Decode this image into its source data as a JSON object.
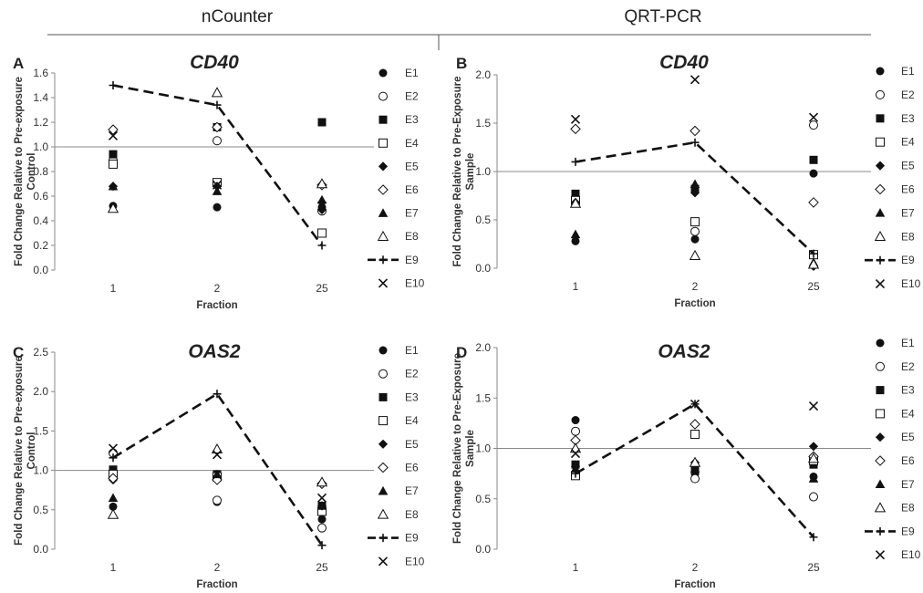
{
  "header": {
    "left_title": "nCounter",
    "right_title": "QRT-PCR"
  },
  "legend_labels": [
    "E1",
    "E2",
    "E3",
    "E4",
    "E5",
    "E6",
    "E7",
    "E8",
    "E9",
    "E10"
  ],
  "chart_data": [
    {
      "panel": "A",
      "type": "scatter",
      "title": "CD40",
      "xlabel": "Fraction",
      "ylabel": [
        "Fold Change Relative to Pre-exposure",
        "Control"
      ],
      "categories": [
        "1",
        "2",
        "25"
      ],
      "ylim": [
        0,
        1.6
      ],
      "yticks": [
        "0.0",
        "0.2",
        "0.4",
        "0.6",
        "0.8",
        "1.0",
        "1.2",
        "1.4",
        "1.6"
      ],
      "reference_line": 1.0,
      "series": [
        {
          "name": "E1",
          "values": [
            0.52,
            0.51,
            0.51
          ]
        },
        {
          "name": "E2",
          "values": [
            0.89,
            1.05,
            0.48
          ]
        },
        {
          "name": "E3",
          "values": [
            0.94,
            1.16,
            1.2
          ]
        },
        {
          "name": "E4",
          "values": [
            0.86,
            0.71,
            0.3
          ]
        },
        {
          "name": "E5",
          "values": [
            0.68,
            0.68,
            0.49
          ]
        },
        {
          "name": "E6",
          "values": [
            1.14,
            1.16,
            0.69
          ]
        },
        {
          "name": "E7",
          "values": [
            0.68,
            0.64,
            0.57
          ]
        },
        {
          "name": "E8",
          "values": [
            0.5,
            1.44,
            0.7
          ]
        },
        {
          "name": "E9",
          "values": [
            1.5,
            1.34,
            0.2
          ]
        },
        {
          "name": "E10",
          "values": [
            1.09,
            0.69,
            0.52
          ]
        }
      ]
    },
    {
      "panel": "B",
      "type": "scatter",
      "title": "CD40",
      "xlabel": "Fraction",
      "ylabel": [
        "Fold Change Relative to Pre-Exposure",
        "Sample"
      ],
      "categories": [
        "1",
        "2",
        "25"
      ],
      "ylim": [
        0,
        2.0
      ],
      "yticks": [
        "0.0",
        "0.5",
        "1.0",
        "1.5",
        "2.0"
      ],
      "reference_line": 1.0,
      "series": [
        {
          "name": "E1",
          "values": [
            0.28,
            0.3,
            0.98
          ]
        },
        {
          "name": "E2",
          "values": [
            0.7,
            0.38,
            1.48
          ]
        },
        {
          "name": "E3",
          "values": [
            0.77,
            0.82,
            1.12
          ]
        },
        {
          "name": "E4",
          "values": [
            0.7,
            0.48,
            0.14
          ]
        },
        {
          "name": "E5",
          "values": [
            0.68,
            0.78,
            0.02
          ]
        },
        {
          "name": "E6",
          "values": [
            1.44,
            1.42,
            0.68
          ]
        },
        {
          "name": "E7",
          "values": [
            0.35,
            0.87,
            0.06
          ]
        },
        {
          "name": "E8",
          "values": [
            0.67,
            0.13,
            0.04
          ]
        },
        {
          "name": "E9",
          "values": [
            1.1,
            1.3,
            0.15
          ]
        },
        {
          "name": "E10",
          "values": [
            1.54,
            1.95,
            1.56
          ]
        }
      ]
    },
    {
      "panel": "C",
      "type": "scatter",
      "title": "OAS2",
      "xlabel": "Fraction",
      "ylabel": [
        "Fold Change Relative to Pre-exposure",
        "Control"
      ],
      "categories": [
        "1",
        "2",
        "25"
      ],
      "ylim": [
        0,
        2.5
      ],
      "yticks": [
        "0.0",
        "0.5",
        "1.0",
        "1.5",
        "2.0",
        "2.5"
      ],
      "reference_line": 1.0,
      "series": [
        {
          "name": "E1",
          "values": [
            0.54,
            0.6,
            0.38
          ]
        },
        {
          "name": "E2",
          "values": [
            1.22,
            0.62,
            0.27
          ]
        },
        {
          "name": "E3",
          "values": [
            1.01,
            0.95,
            0.55
          ]
        },
        {
          "name": "E4",
          "values": [
            0.95,
            0.92,
            0.48
          ]
        },
        {
          "name": "E5",
          "values": [
            0.88,
            0.9,
            0.55
          ]
        },
        {
          "name": "E6",
          "values": [
            0.9,
            0.88,
            0.83
          ]
        },
        {
          "name": "E7",
          "values": [
            0.65,
            0.95,
            0.55
          ]
        },
        {
          "name": "E8",
          "values": [
            0.44,
            1.27,
            0.85
          ]
        },
        {
          "name": "E9",
          "values": [
            1.16,
            1.97,
            0.05
          ]
        },
        {
          "name": "E10",
          "values": [
            1.28,
            1.2,
            0.65
          ]
        }
      ]
    },
    {
      "panel": "D",
      "type": "scatter",
      "title": "OAS2",
      "xlabel": "Fraction",
      "ylabel": [
        "Fold Change Relative to Pre-Exposure",
        "Sample"
      ],
      "categories": [
        "1",
        "2",
        "25"
      ],
      "ylim": [
        0,
        2.0
      ],
      "yticks": [
        "0.0",
        "0.5",
        "1.0",
        "1.5",
        "2.0"
      ],
      "reference_line": 1.0,
      "series": [
        {
          "name": "E1",
          "values": [
            1.28,
            0.75,
            0.72
          ]
        },
        {
          "name": "E2",
          "values": [
            1.17,
            0.7,
            0.52
          ]
        },
        {
          "name": "E3",
          "values": [
            0.84,
            0.78,
            0.84
          ]
        },
        {
          "name": "E4",
          "values": [
            0.73,
            1.14,
            0.88
          ]
        },
        {
          "name": "E5",
          "values": [
            0.82,
            0.86,
            1.02
          ]
        },
        {
          "name": "E6",
          "values": [
            1.08,
            1.24,
            0.92
          ]
        },
        {
          "name": "E7",
          "values": [
            0.8,
            0.8,
            0.7
          ]
        },
        {
          "name": "E8",
          "values": [
            1.0,
            0.86,
            0.9
          ]
        },
        {
          "name": "E9",
          "values": [
            0.75,
            1.44,
            0.12
          ]
        },
        {
          "name": "E10",
          "values": [
            0.95,
            1.44,
            1.42
          ]
        }
      ]
    }
  ]
}
